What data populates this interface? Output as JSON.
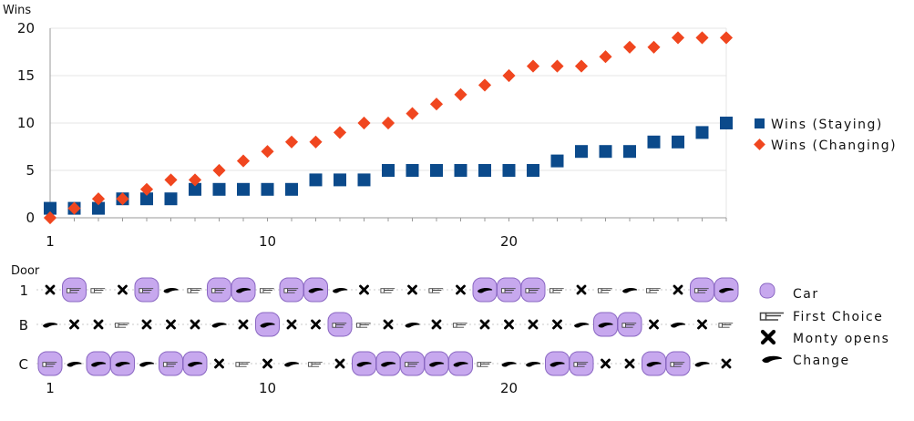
{
  "chart_data": [
    {
      "type": "scatter",
      "title": "",
      "ylabel": "Wins",
      "xlabel": "",
      "x": [
        1,
        2,
        3,
        4,
        5,
        6,
        7,
        8,
        9,
        10,
        11,
        12,
        13,
        14,
        15,
        16,
        17,
        18,
        19,
        20,
        21,
        22,
        23,
        24,
        25,
        26,
        27,
        28,
        29
      ],
      "xticks": [
        1,
        10,
        20
      ],
      "yticks": [
        0,
        5,
        10,
        15,
        20
      ],
      "xlim": [
        1,
        29
      ],
      "ylim": [
        0,
        20
      ],
      "grid": true,
      "legend_position": "right",
      "series": [
        {
          "name": "Wins (Staying)",
          "marker": "square",
          "color": "#0b4a8b",
          "values": [
            1,
            1,
            1,
            2,
            2,
            2,
            3,
            3,
            3,
            3,
            3,
            4,
            4,
            4,
            5,
            5,
            5,
            5,
            5,
            5,
            5,
            6,
            7,
            7,
            7,
            8,
            8,
            9,
            10
          ]
        },
        {
          "name": "Wins (Changing)",
          "marker": "diamond",
          "color": "#f0461f",
          "values": [
            0,
            1,
            2,
            2,
            3,
            4,
            4,
            5,
            6,
            7,
            8,
            8,
            9,
            10,
            10,
            11,
            12,
            13,
            14,
            15,
            16,
            16,
            16,
            17,
            18,
            18,
            19,
            19,
            19
          ]
        }
      ]
    },
    {
      "type": "table",
      "ylabel": "Door",
      "rows": [
        "1",
        "B",
        "C"
      ],
      "xticks": [
        1,
        10,
        20
      ],
      "legend": [
        {
          "key": "car",
          "label": "Car"
        },
        {
          "key": "first",
          "label": "First Choice"
        },
        {
          "key": "monty",
          "label": "Monty opens"
        },
        {
          "key": "change",
          "label": "Change"
        }
      ],
      "games": [
        {
          "car": "C",
          "first": "C",
          "monty": "1",
          "change": "B"
        },
        {
          "car": "1",
          "first": "1",
          "monty": "B",
          "change": "C"
        },
        {
          "car": "C",
          "first": "1",
          "monty": "B",
          "change": "C"
        },
        {
          "car": "C",
          "first": "B",
          "monty": "1",
          "change": "C"
        },
        {
          "car": "1",
          "first": "1",
          "monty": "B",
          "change": "C"
        },
        {
          "car": "C",
          "first": "C",
          "monty": "B",
          "change": "1"
        },
        {
          "car": "C",
          "first": "1",
          "monty": "B",
          "change": "C"
        },
        {
          "car": "1",
          "first": "1",
          "monty": "C",
          "change": "B"
        },
        {
          "car": "1",
          "first": "C",
          "monty": "B",
          "change": "1"
        },
        {
          "car": "B",
          "first": "1",
          "monty": "C",
          "change": "B"
        },
        {
          "car": "1",
          "first": "1",
          "monty": "B",
          "change": "C"
        },
        {
          "car": "1",
          "first": "C",
          "monty": "B",
          "change": "1"
        },
        {
          "car": "B",
          "first": "B",
          "monty": "C",
          "change": "1"
        },
        {
          "car": "C",
          "first": "B",
          "monty": "1",
          "change": "C"
        },
        {
          "car": "C",
          "first": "1",
          "monty": "B",
          "change": "C"
        },
        {
          "car": "C",
          "first": "C",
          "monty": "1",
          "change": "B"
        },
        {
          "car": "C",
          "first": "1",
          "monty": "B",
          "change": "C"
        },
        {
          "car": "C",
          "first": "B",
          "monty": "1",
          "change": "C"
        },
        {
          "car": "1",
          "first": "C",
          "monty": "B",
          "change": "1"
        },
        {
          "car": "1",
          "first": "1",
          "monty": "B",
          "change": "C"
        },
        {
          "car": "1",
          "first": "1",
          "monty": "B",
          "change": "C"
        },
        {
          "car": "C",
          "first": "1",
          "monty": "B",
          "change": "C"
        },
        {
          "car": "C",
          "first": "C",
          "monty": "1",
          "change": "B"
        },
        {
          "car": "B",
          "first": "1",
          "monty": "C",
          "change": "B"
        },
        {
          "car": "B",
          "first": "B",
          "monty": "C",
          "change": "1"
        },
        {
          "car": "C",
          "first": "1",
          "monty": "B",
          "change": "C"
        },
        {
          "car": "C",
          "first": "C",
          "monty": "1",
          "change": "B"
        },
        {
          "car": "1",
          "first": "1",
          "monty": "B",
          "change": "C"
        },
        {
          "car": "1",
          "first": "B",
          "monty": "C",
          "change": "1"
        }
      ]
    }
  ],
  "colors": {
    "staying": "#0b4a8b",
    "changing": "#f0461f",
    "car_fill": "#c7a8ee",
    "car_stroke": "#8a67c2",
    "grid": "#e4e4e4"
  }
}
